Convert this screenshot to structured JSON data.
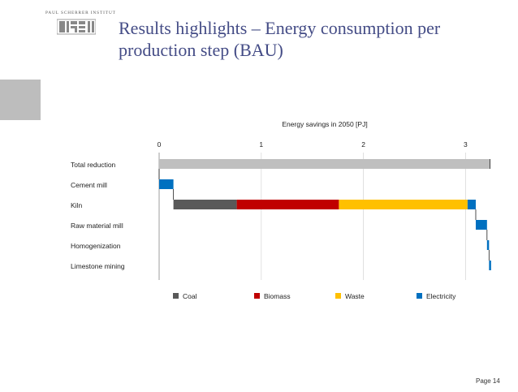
{
  "header": {
    "logo_text": "PAUL SCHERRER INSTITUT",
    "title": "Results highlights – Energy consumption per production step (BAU)"
  },
  "footer": {
    "page": "Page 14"
  },
  "colors": {
    "accent_title": "#444c86",
    "coal": "#595959",
    "biomass": "#c00000",
    "waste": "#ffc000",
    "electricity": "#0070c0",
    "total": "#bfbfbf"
  },
  "chart_data": {
    "type": "bar",
    "subtype": "waterfall-horizontal",
    "title": "Energy savings in 2050 [PJ]",
    "xlabel": "",
    "ylabel": "",
    "xlim": [
      0,
      3.25
    ],
    "xticks": [
      "0",
      "1",
      "2",
      "3"
    ],
    "grid": true,
    "legend_position": "bottom",
    "categories": [
      "Total reduction",
      "Cement mill",
      "Kiln",
      "Raw material mill",
      "Homogenization",
      "Limestone mining"
    ],
    "series": [
      {
        "name": "Total",
        "values": [
          3.24,
          0,
          0,
          0,
          0,
          0
        ]
      },
      {
        "name": "Coal",
        "values": [
          0,
          0,
          0.62,
          0,
          0,
          0
        ]
      },
      {
        "name": "Biomass",
        "values": [
          0,
          0,
          1.0,
          0,
          0,
          0
        ]
      },
      {
        "name": "Waste",
        "values": [
          0,
          0,
          1.26,
          0,
          0,
          0
        ]
      },
      {
        "name": "Electricity",
        "values": [
          0,
          0.14,
          0.08,
          0.11,
          0.02,
          0.02
        ]
      }
    ],
    "legend": [
      "Coal",
      "Biomass",
      "Waste",
      "Electricity"
    ]
  }
}
